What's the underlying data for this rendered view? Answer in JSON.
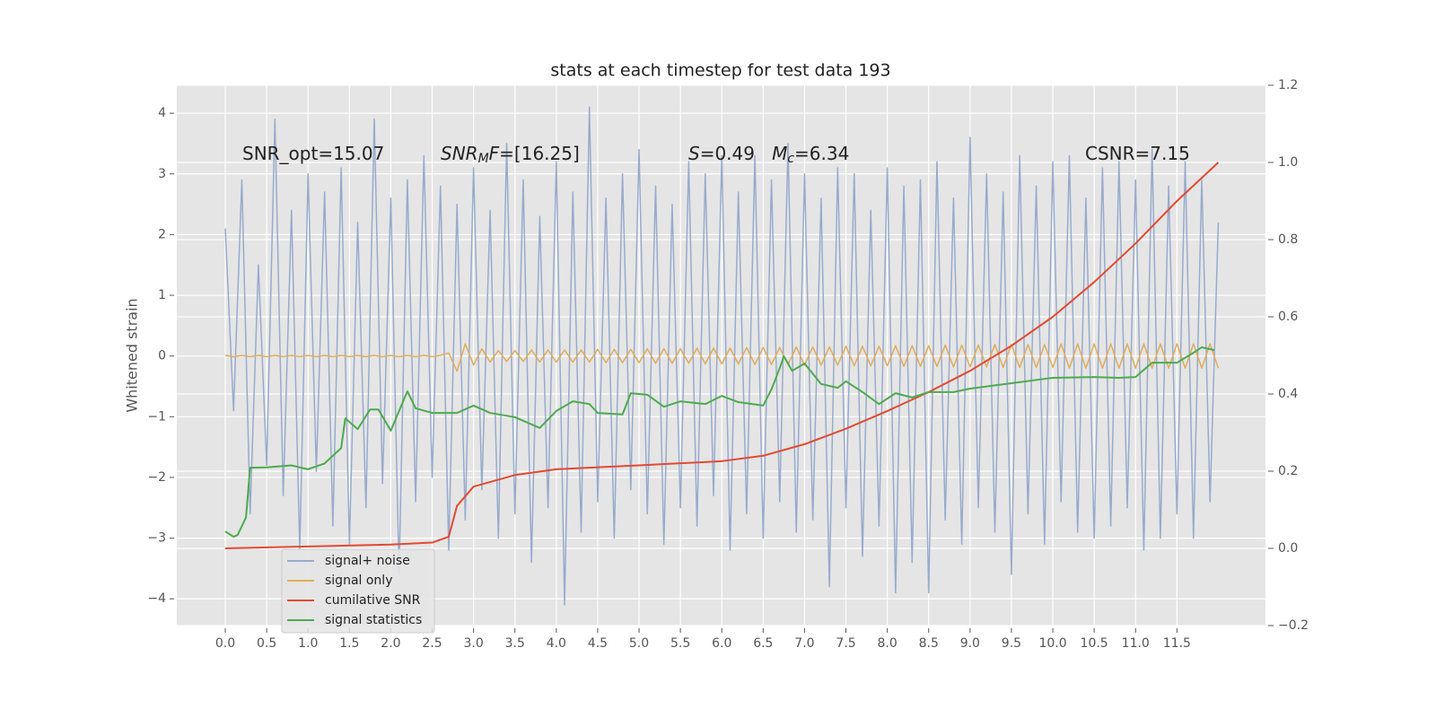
{
  "chart_data": {
    "type": "line",
    "title": "stats at each timestep for test data 193",
    "ylabel": "Whitened strain",
    "grid": true,
    "legend": "lower left",
    "xlim": [
      -0.586,
      12.57
    ],
    "ylim": [
      -4.44,
      4.46
    ],
    "y2lim": [
      -0.2,
      1.2
    ],
    "xticks": [
      {
        "value": 0,
        "label": "0.0"
      },
      0.5,
      {
        "value": 1,
        "label": "1.0"
      },
      1.5,
      {
        "value": 2,
        "label": "2.0"
      },
      2.5,
      {
        "value": 3,
        "label": "3.0"
      },
      3.5,
      {
        "value": 4,
        "label": "4.0"
      },
      4.5,
      {
        "value": 5,
        "label": "5.0"
      },
      5.5,
      {
        "value": 6,
        "label": "6.0"
      },
      6.5,
      {
        "value": 7,
        "label": "7.0"
      },
      7.5,
      {
        "value": 8,
        "label": "8.0"
      },
      8.5,
      {
        "value": 9,
        "label": "9.0"
      },
      9.5,
      {
        "value": 10,
        "label": "10.0"
      },
      10.5,
      {
        "value": 11,
        "label": "11.0"
      },
      11.5
    ],
    "yticks": [
      {
        "value": -4,
        "label": "−4"
      },
      {
        "value": -3,
        "label": "−3"
      },
      {
        "value": -2,
        "label": "−2"
      },
      {
        "value": -1,
        "label": "−1"
      },
      0,
      1,
      2,
      3,
      4
    ],
    "y2ticks": [
      {
        "value": -0.2,
        "label": "−0.2"
      },
      {
        "value": 0,
        "label": "0.0"
      },
      0.2,
      0.4,
      0.6,
      0.8,
      {
        "value": 1,
        "label": "1.0"
      },
      1.2
    ],
    "annotations": [
      [
        {
          "text": "SNR_opt=15.07"
        }
      ],
      [
        {
          "text": "SNR",
          "style": "italic"
        },
        {
          "text": "M",
          "style": "sub"
        },
        {
          "text": "F",
          "style": "italic"
        },
        {
          "text": "=[16.25]"
        }
      ],
      [
        {
          "text": "S",
          "style": "italic"
        },
        {
          "text": "=0.49   "
        },
        {
          "text": "M",
          "style": "italic"
        },
        {
          "text": "c",
          "style": "sub"
        },
        {
          "text": "=6.34"
        }
      ],
      [
        {
          "text": "CSNR=7.15"
        }
      ]
    ],
    "x": [
      0.0,
      0.1,
      0.2,
      0.3,
      0.4,
      0.5,
      0.6,
      0.7,
      0.8,
      0.9,
      1.0,
      1.1,
      1.2,
      1.3,
      1.4,
      1.5,
      1.6,
      1.7,
      1.8,
      1.9,
      2.0,
      2.1,
      2.2,
      2.3,
      2.4,
      2.5,
      2.6,
      2.7,
      2.8,
      2.9,
      3.0,
      3.1,
      3.2,
      3.3,
      3.4,
      3.5,
      3.6,
      3.7,
      3.8,
      3.9,
      4.0,
      4.1,
      4.2,
      4.3,
      4.4,
      4.5,
      4.6,
      4.7,
      4.8,
      4.9,
      5.0,
      5.1,
      5.2,
      5.3,
      5.4,
      5.5,
      5.6,
      5.7,
      5.8,
      5.9,
      6.0,
      6.1,
      6.2,
      6.3,
      6.4,
      6.5,
      6.6,
      6.7,
      6.8,
      6.9,
      7.0,
      7.1,
      7.2,
      7.3,
      7.4,
      7.5,
      7.6,
      7.7,
      7.8,
      7.9,
      8.0,
      8.1,
      8.2,
      8.3,
      8.4,
      8.5,
      8.6,
      8.7,
      8.8,
      8.9,
      9.0,
      9.1,
      9.2,
      9.3,
      9.4,
      9.5,
      9.6,
      9.7,
      9.8,
      9.9,
      10.0,
      10.1,
      10.2,
      10.3,
      10.4,
      10.5,
      10.6,
      10.7,
      10.8,
      10.9,
      11.0,
      11.1,
      11.2,
      11.3,
      11.4,
      11.5,
      11.6,
      11.7,
      11.8,
      11.9,
      12.0
    ],
    "series": [
      {
        "name": "signal+ noise",
        "color": "#98abcd",
        "values": [
          2.1,
          -0.9,
          2.9,
          -2.6,
          1.5,
          -1.8,
          3.9,
          -2.3,
          2.4,
          -3.2,
          3.0,
          -1.9,
          2.7,
          -2.8,
          3.1,
          -3.1,
          2.2,
          -2.5,
          3.9,
          -2.1,
          2.6,
          -3.6,
          2.9,
          -2.4,
          3.3,
          -2.0,
          2.8,
          -3.2,
          2.5,
          -2.7,
          3.1,
          -2.2,
          2.4,
          -3.0,
          3.5,
          -2.6,
          2.9,
          -3.4,
          2.3,
          -2.5,
          3.2,
          -4.1,
          2.7,
          -2.9,
          4.1,
          -2.4,
          2.6,
          -3.0,
          3.0,
          -2.2,
          3.4,
          -2.6,
          2.8,
          -3.1,
          2.5,
          -2.5,
          3.2,
          -2.8,
          3.0,
          -2.3,
          3.3,
          -3.2,
          2.7,
          -2.6,
          3.3,
          -3.0,
          2.9,
          -2.4,
          3.5,
          -2.9,
          3.0,
          -2.7,
          2.6,
          -3.8,
          3.1,
          -2.5,
          3.0,
          -3.3,
          2.4,
          -2.8,
          3.1,
          -3.9,
          2.8,
          -3.4,
          2.9,
          -3.9,
          3.2,
          -2.7,
          2.6,
          -3.1,
          3.6,
          -2.5,
          3.0,
          -2.9,
          2.7,
          -3.6,
          3.3,
          -2.6,
          2.8,
          -3.1,
          3.2,
          -2.4,
          3.3,
          -2.9,
          2.6,
          -3.0,
          3.1,
          -2.8,
          3.2,
          -2.5,
          2.9,
          -3.2,
          3.4,
          -3.0,
          2.8,
          -2.6,
          3.2,
          -3.0,
          2.9,
          -2.4,
          2.2
        ]
      },
      {
        "name": "signal only",
        "color": "#e0ad5b",
        "values": [
          0.01,
          -0.01,
          0.01,
          -0.01,
          0.01,
          -0.01,
          0.01,
          -0.01,
          0.01,
          -0.01,
          0.01,
          -0.01,
          0.01,
          -0.01,
          0.01,
          -0.01,
          0.01,
          -0.01,
          0.01,
          -0.01,
          0.01,
          -0.01,
          0.01,
          -0.01,
          0.01,
          -0.01,
          0.01,
          0.05,
          -0.25,
          0.2,
          -0.15,
          0.12,
          -0.1,
          0.09,
          -0.09,
          0.09,
          -0.09,
          0.1,
          -0.1,
          0.1,
          -0.1,
          0.1,
          -0.1,
          0.1,
          -0.1,
          0.11,
          -0.11,
          0.11,
          -0.11,
          0.11,
          -0.11,
          0.12,
          -0.12,
          0.12,
          -0.12,
          0.12,
          -0.12,
          0.13,
          -0.13,
          0.13,
          -0.13,
          0.13,
          -0.13,
          0.14,
          -0.14,
          0.14,
          -0.14,
          0.14,
          -0.14,
          0.15,
          -0.15,
          0.15,
          -0.15,
          0.15,
          -0.15,
          0.16,
          -0.16,
          0.16,
          -0.16,
          0.16,
          -0.16,
          0.17,
          -0.17,
          0.17,
          -0.17,
          0.17,
          -0.17,
          0.18,
          -0.18,
          0.18,
          -0.18,
          0.18,
          -0.18,
          0.19,
          -0.19,
          0.19,
          -0.19,
          0.19,
          -0.19,
          0.19,
          -0.19,
          0.2,
          -0.2,
          0.2,
          -0.2,
          0.2,
          -0.2,
          0.2,
          -0.2,
          0.2,
          -0.2,
          0.2,
          -0.2,
          0.2,
          -0.2,
          0.2,
          -0.2,
          0.2,
          -0.2,
          0.2,
          -0.2
        ]
      },
      {
        "name": "cumilative SNR",
        "color": "#e24a33",
        "axis": "y2",
        "x": [
          0,
          1,
          2,
          2.5,
          2.7,
          2.75,
          2.8,
          3.0,
          3.5,
          4.0,
          5.0,
          6.0,
          6.5,
          7.0,
          7.5,
          8.0,
          8.5,
          9.0,
          9.5,
          10.0,
          10.5,
          11.0,
          11.5,
          12.0
        ],
        "values": [
          0,
          0.005,
          0.01,
          0.015,
          0.03,
          0.07,
          0.11,
          0.16,
          0.19,
          0.205,
          0.215,
          0.226,
          0.24,
          0.27,
          0.31,
          0.356,
          0.405,
          0.46,
          0.525,
          0.6,
          0.69,
          0.79,
          0.9,
          1.0
        ]
      },
      {
        "name": "signal statistics",
        "color": "#4daa4e",
        "axis": "y2",
        "x": [
          0,
          0.1,
          0.15,
          0.25,
          0.3,
          0.5,
          0.8,
          1.0,
          1.2,
          1.4,
          1.45,
          1.6,
          1.75,
          1.85,
          2.0,
          2.2,
          2.3,
          2.5,
          2.8,
          3.0,
          3.2,
          3.5,
          3.8,
          4.0,
          4.2,
          4.4,
          4.5,
          4.8,
          4.9,
          5.1,
          5.3,
          5.5,
          5.8,
          6.0,
          6.2,
          6.5,
          6.6,
          6.7,
          6.75,
          6.85,
          7.0,
          7.2,
          7.4,
          7.5,
          7.7,
          7.9,
          8.1,
          8.3,
          8.5,
          8.8,
          9.0,
          9.5,
          10.0,
          10.5,
          10.8,
          11.0,
          11.2,
          11.5,
          11.7,
          11.8,
          11.95
        ],
        "values": [
          0.044,
          0.03,
          0.035,
          0.08,
          0.209,
          0.21,
          0.215,
          0.205,
          0.22,
          0.26,
          0.337,
          0.309,
          0.36,
          0.36,
          0.305,
          0.407,
          0.363,
          0.351,
          0.351,
          0.37,
          0.351,
          0.34,
          0.312,
          0.356,
          0.381,
          0.374,
          0.351,
          0.347,
          0.402,
          0.398,
          0.367,
          0.381,
          0.374,
          0.395,
          0.379,
          0.37,
          0.412,
          0.467,
          0.498,
          0.46,
          0.479,
          0.426,
          0.416,
          0.433,
          0.405,
          0.374,
          0.402,
          0.391,
          0.405,
          0.405,
          0.414,
          0.428,
          0.442,
          0.444,
          0.442,
          0.444,
          0.481,
          0.481,
          0.507,
          0.521,
          0.514
        ]
      }
    ]
  }
}
